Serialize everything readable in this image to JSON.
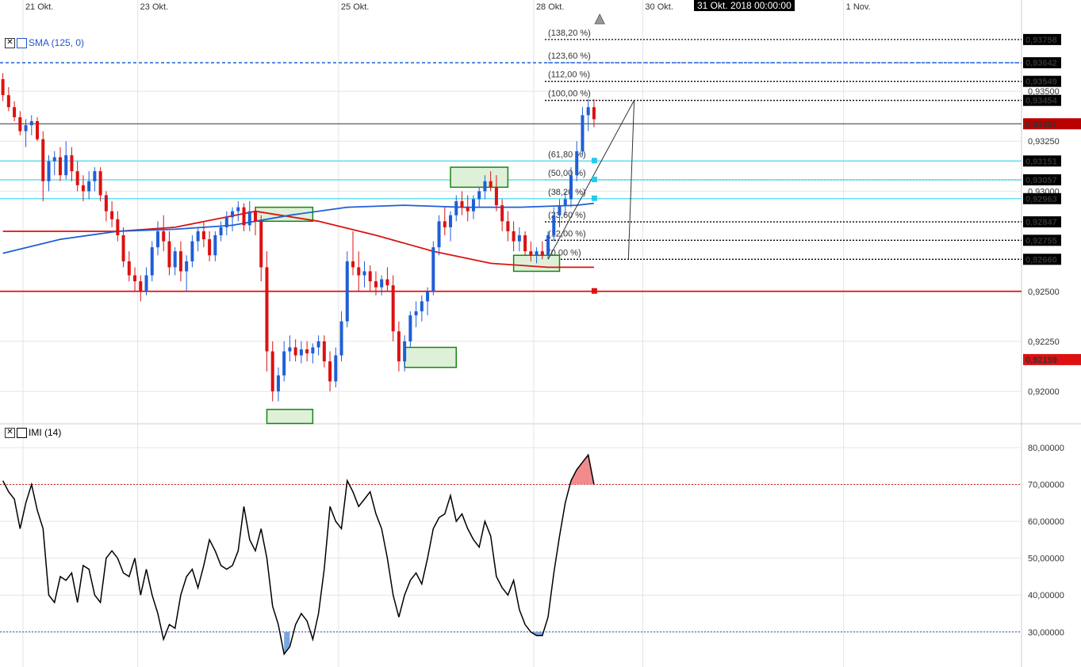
{
  "x_axis": {
    "labels": [
      {
        "label": "21 Okt.",
        "t": 4
      },
      {
        "label": "23 Okt.",
        "t": 24
      },
      {
        "label": "25 Okt.",
        "t": 59
      },
      {
        "label": "28 Okt.",
        "t": 93
      },
      {
        "label": "30 Okt.",
        "t": 112
      },
      {
        "label": "1 Nov.",
        "t": 147
      }
    ],
    "cursor_label": "31 Okt. 2018 00:00:00",
    "t_range": [
      0,
      178
    ]
  },
  "price_axis": {
    "range": [
      0.9185,
      0.939
    ],
    "ticks": [
      {
        "v": 0.935,
        "label": "0,93500"
      },
      {
        "v": 0.9325,
        "label": "0,93250"
      },
      {
        "v": 0.93,
        "label": "0,93000"
      },
      {
        "v": 0.925,
        "label": "0,92500"
      },
      {
        "v": 0.9225,
        "label": "0,92250"
      },
      {
        "v": 0.92,
        "label": "0,92000"
      }
    ],
    "badges": [
      {
        "v": 0.93758,
        "label": "0,93758",
        "color": "#000000"
      },
      {
        "v": 0.93642,
        "label": "0,93642",
        "color": "#000000"
      },
      {
        "v": 0.93549,
        "label": "0,93549",
        "color": "#000000"
      },
      {
        "v": 0.93454,
        "label": "0,93454",
        "color": "#000000"
      },
      {
        "v": 0.93337,
        "label": "0,93337",
        "color": "#bb0000"
      },
      {
        "v": 0.93151,
        "label": "0,93151",
        "color": "#000000"
      },
      {
        "v": 0.93057,
        "label": "0,93057",
        "color": "#000000"
      },
      {
        "v": 0.92963,
        "label": "0,92963",
        "color": "#000000"
      },
      {
        "v": 0.92847,
        "label": "0,92847",
        "color": "#000000"
      },
      {
        "v": 0.92755,
        "label": "0,92755",
        "color": "#000000"
      },
      {
        "v": 0.9266,
        "label": "0,92660",
        "color": "#000000"
      },
      {
        "v": 0.92159,
        "label": "0,92159",
        "color": "#dd1111"
      }
    ]
  },
  "indicator_axis": {
    "range": [
      22,
      86
    ],
    "ticks": [
      {
        "v": 80,
        "label": "80,00000"
      },
      {
        "v": 70,
        "label": "70,00000"
      },
      {
        "v": 60,
        "label": "60,00000"
      },
      {
        "v": 50,
        "label": "50,00000"
      },
      {
        "v": 40,
        "label": "40,00000"
      },
      {
        "v": 30,
        "label": "30,00000"
      }
    ],
    "upper": 70,
    "lower": 30
  },
  "legend": {
    "sma_label": "SMA (125, 0)",
    "imi_label": "IMI (14)",
    "close_glyph": "✕"
  },
  "chart_data": {
    "type": "candlestick",
    "instrument_note": "",
    "colors": {
      "up": "#1f5fd6",
      "down": "#dd1111",
      "sma": "#1f5fd6",
      "sma2": "#dd1111",
      "hline_red": "#dd1111",
      "fib_cyan": "#66ddee",
      "imi": "#000000",
      "imi_over": "#f28b8b",
      "imi_under": "#7aa6e0"
    },
    "candles": [
      [
        0,
        0.9356,
        0.9359,
        0.9345,
        0.9348
      ],
      [
        1,
        0.9348,
        0.9352,
        0.934,
        0.9342
      ],
      [
        2,
        0.9342,
        0.9345,
        0.9335,
        0.9337
      ],
      [
        3,
        0.9337,
        0.934,
        0.9328,
        0.933
      ],
      [
        4,
        0.933,
        0.9336,
        0.9322,
        0.9333
      ],
      [
        5,
        0.9333,
        0.9338,
        0.9328,
        0.9335
      ],
      [
        6,
        0.9335,
        0.9337,
        0.9325,
        0.9326
      ],
      [
        7,
        0.9326,
        0.933,
        0.9295,
        0.9305
      ],
      [
        8,
        0.9305,
        0.9318,
        0.93,
        0.9315
      ],
      [
        9,
        0.9315,
        0.932,
        0.9308,
        0.9317
      ],
      [
        10,
        0.9317,
        0.9322,
        0.9305,
        0.9308
      ],
      [
        11,
        0.9308,
        0.9325,
        0.9306,
        0.9318
      ],
      [
        12,
        0.9318,
        0.9322,
        0.9305,
        0.931
      ],
      [
        13,
        0.931,
        0.9315,
        0.93,
        0.9303
      ],
      [
        14,
        0.9303,
        0.9308,
        0.9295,
        0.93
      ],
      [
        15,
        0.93,
        0.931,
        0.9296,
        0.9305
      ],
      [
        16,
        0.9305,
        0.9312,
        0.93,
        0.931
      ],
      [
        17,
        0.931,
        0.9312,
        0.9295,
        0.9298
      ],
      [
        18,
        0.9298,
        0.93,
        0.9285,
        0.929
      ],
      [
        19,
        0.929,
        0.9295,
        0.9282,
        0.9286
      ],
      [
        20,
        0.9286,
        0.929,
        0.9275,
        0.9278
      ],
      [
        21,
        0.9278,
        0.9282,
        0.9262,
        0.9265
      ],
      [
        22,
        0.9265,
        0.927,
        0.9255,
        0.9258
      ],
      [
        23,
        0.9258,
        0.9262,
        0.925,
        0.9255
      ],
      [
        24,
        0.9255,
        0.9258,
        0.9245,
        0.925
      ],
      [
        25,
        0.925,
        0.9262,
        0.9248,
        0.9258
      ],
      [
        26,
        0.9258,
        0.9275,
        0.9255,
        0.9272
      ],
      [
        27,
        0.9272,
        0.9285,
        0.9268,
        0.928
      ],
      [
        28,
        0.928,
        0.9288,
        0.927,
        0.9275
      ],
      [
        29,
        0.9275,
        0.928,
        0.9258,
        0.9262
      ],
      [
        30,
        0.9262,
        0.9272,
        0.9258,
        0.927
      ],
      [
        31,
        0.927,
        0.9275,
        0.9255,
        0.926
      ],
      [
        32,
        0.926,
        0.9268,
        0.925,
        0.9265
      ],
      [
        33,
        0.9265,
        0.9278,
        0.9262,
        0.9275
      ],
      [
        34,
        0.9275,
        0.9282,
        0.927,
        0.928
      ],
      [
        35,
        0.928,
        0.9285,
        0.9272,
        0.9276
      ],
      [
        36,
        0.9276,
        0.928,
        0.9265,
        0.9268
      ],
      [
        37,
        0.9268,
        0.928,
        0.9265,
        0.9278
      ],
      [
        38,
        0.9278,
        0.9285,
        0.9275,
        0.9282
      ],
      [
        39,
        0.9282,
        0.929,
        0.9278,
        0.9287
      ],
      [
        40,
        0.9287,
        0.9292,
        0.928,
        0.929
      ],
      [
        41,
        0.929,
        0.9295,
        0.9285,
        0.9292
      ],
      [
        42,
        0.9292,
        0.9294,
        0.928,
        0.9283
      ],
      [
        43,
        0.9283,
        0.9295,
        0.928,
        0.929
      ],
      [
        44,
        0.929,
        0.9292,
        0.9278,
        0.9285
      ],
      [
        45,
        0.9285,
        0.9288,
        0.9255,
        0.9262
      ],
      [
        46,
        0.9262,
        0.927,
        0.921,
        0.922
      ],
      [
        47,
        0.922,
        0.9225,
        0.9195,
        0.92
      ],
      [
        48,
        0.92,
        0.9212,
        0.9195,
        0.9208
      ],
      [
        49,
        0.9208,
        0.9225,
        0.9205,
        0.922
      ],
      [
        50,
        0.922,
        0.9228,
        0.9215,
        0.9222
      ],
      [
        51,
        0.9222,
        0.9226,
        0.9215,
        0.9218
      ],
      [
        52,
        0.9218,
        0.9225,
        0.9214,
        0.9221
      ],
      [
        53,
        0.9221,
        0.9225,
        0.9215,
        0.9219
      ],
      [
        54,
        0.9219,
        0.9224,
        0.9214,
        0.9222
      ],
      [
        55,
        0.9222,
        0.9228,
        0.9218,
        0.9225
      ],
      [
        56,
        0.9225,
        0.9228,
        0.9212,
        0.9215
      ],
      [
        57,
        0.9215,
        0.922,
        0.92,
        0.9205
      ],
      [
        58,
        0.9205,
        0.9222,
        0.9202,
        0.9218
      ],
      [
        59,
        0.9218,
        0.924,
        0.9215,
        0.9235
      ],
      [
        60,
        0.9235,
        0.927,
        0.9232,
        0.9265
      ],
      [
        61,
        0.9265,
        0.928,
        0.9258,
        0.9262
      ],
      [
        62,
        0.9262,
        0.927,
        0.925,
        0.9258
      ],
      [
        63,
        0.9258,
        0.9265,
        0.9252,
        0.926
      ],
      [
        64,
        0.926,
        0.9263,
        0.925,
        0.9255
      ],
      [
        65,
        0.9255,
        0.926,
        0.9248,
        0.9252
      ],
      [
        66,
        0.9252,
        0.9258,
        0.9248,
        0.9256
      ],
      [
        67,
        0.9256,
        0.9262,
        0.925,
        0.9253
      ],
      [
        68,
        0.9253,
        0.9258,
        0.9225,
        0.923
      ],
      [
        69,
        0.923,
        0.9235,
        0.921,
        0.9215
      ],
      [
        70,
        0.9215,
        0.9228,
        0.921,
        0.9225
      ],
      [
        71,
        0.9225,
        0.924,
        0.9222,
        0.9238
      ],
      [
        72,
        0.9238,
        0.9245,
        0.9232,
        0.924
      ],
      [
        73,
        0.924,
        0.9248,
        0.9235,
        0.9245
      ],
      [
        74,
        0.9245,
        0.9252,
        0.9238,
        0.925
      ],
      [
        75,
        0.925,
        0.9275,
        0.9248,
        0.9272
      ],
      [
        76,
        0.9272,
        0.9288,
        0.9268,
        0.9285
      ],
      [
        77,
        0.9285,
        0.9292,
        0.9278,
        0.9282
      ],
      [
        78,
        0.9282,
        0.929,
        0.9275,
        0.9288
      ],
      [
        79,
        0.9288,
        0.9298,
        0.9285,
        0.9295
      ],
      [
        80,
        0.9295,
        0.93,
        0.9288,
        0.9292
      ],
      [
        81,
        0.9292,
        0.9298,
        0.9285,
        0.929
      ],
      [
        82,
        0.929,
        0.9298,
        0.9286,
        0.9296
      ],
      [
        83,
        0.9296,
        0.9302,
        0.9292,
        0.93
      ],
      [
        84,
        0.93,
        0.9308,
        0.9296,
        0.9305
      ],
      [
        85,
        0.9305,
        0.931,
        0.93,
        0.9302
      ],
      [
        86,
        0.9302,
        0.9308,
        0.929,
        0.9293
      ],
      [
        87,
        0.9293,
        0.9296,
        0.928,
        0.9285
      ],
      [
        88,
        0.9285,
        0.929,
        0.9275,
        0.928
      ],
      [
        89,
        0.928,
        0.9285,
        0.927,
        0.9275
      ],
      [
        90,
        0.9275,
        0.9282,
        0.927,
        0.9278
      ],
      [
        91,
        0.9278,
        0.928,
        0.9268,
        0.927
      ],
      [
        92,
        0.927,
        0.9275,
        0.9265,
        0.9268
      ],
      [
        93,
        0.9268,
        0.9272,
        0.9264,
        0.927
      ],
      [
        94,
        0.927,
        0.9275,
        0.9266,
        0.9268
      ],
      [
        95,
        0.9268,
        0.928,
        0.9266,
        0.9278
      ],
      [
        96,
        0.9278,
        0.9292,
        0.9275,
        0.9288
      ],
      [
        97,
        0.9288,
        0.9296,
        0.9282,
        0.9293
      ],
      [
        98,
        0.9293,
        0.93,
        0.9288,
        0.9296
      ],
      [
        99,
        0.9296,
        0.9312,
        0.9292,
        0.9308
      ],
      [
        100,
        0.9308,
        0.9325,
        0.9305,
        0.932
      ],
      [
        101,
        0.932,
        0.9342,
        0.9318,
        0.9338
      ],
      [
        102,
        0.9338,
        0.9346,
        0.933,
        0.9342
      ],
      [
        103,
        0.9342,
        0.9346,
        0.9332,
        0.9336
      ]
    ],
    "sma": [
      [
        0,
        0.9269
      ],
      [
        10,
        0.9276
      ],
      [
        20,
        0.928
      ],
      [
        30,
        0.9281
      ],
      [
        40,
        0.9283
      ],
      [
        50,
        0.9288
      ],
      [
        60,
        0.9292
      ],
      [
        70,
        0.9293
      ],
      [
        80,
        0.9292
      ],
      [
        90,
        0.9292
      ],
      [
        100,
        0.9293
      ],
      [
        103,
        0.9294
      ]
    ],
    "sma2": [
      [
        0,
        0.928
      ],
      [
        20,
        0.928
      ],
      [
        30,
        0.9282
      ],
      [
        44,
        0.929
      ],
      [
        55,
        0.9285
      ],
      [
        65,
        0.9278
      ],
      [
        75,
        0.927
      ],
      [
        85,
        0.9264
      ],
      [
        95,
        0.9262
      ],
      [
        103,
        0.9262
      ]
    ],
    "fib_levels": [
      {
        "pct": "(138,20 %)",
        "v": 0.93758,
        "color": "#000000"
      },
      {
        "pct": "(123,60 %)",
        "v": 0.93642,
        "color": "#1f5fd6"
      },
      {
        "pct": "(112,00 %)",
        "v": 0.93549,
        "color": "#000000"
      },
      {
        "pct": "(100,00 %)",
        "v": 0.93454,
        "color": "#000000"
      },
      {
        "pct": "(61,80 %)",
        "v": 0.93151,
        "color": "#000000"
      },
      {
        "pct": "(50,00 %)",
        "v": 0.93057,
        "color": "#000000"
      },
      {
        "pct": "(38,20 %)",
        "v": 0.92963,
        "color": "#000000"
      },
      {
        "pct": "(23,60 %)",
        "v": 0.92847,
        "color": "#000000"
      },
      {
        "pct": "(12,00 %)",
        "v": 0.92755,
        "color": "#000000"
      },
      {
        "pct": "(0,00 %)",
        "v": 0.9266,
        "color": "#000000"
      }
    ],
    "imi": [
      [
        0,
        71
      ],
      [
        1,
        68
      ],
      [
        2,
        66
      ],
      [
        3,
        58
      ],
      [
        4,
        65
      ],
      [
        5,
        70
      ],
      [
        6,
        63
      ],
      [
        7,
        58
      ],
      [
        8,
        40
      ],
      [
        9,
        38
      ],
      [
        10,
        45
      ],
      [
        11,
        44
      ],
      [
        12,
        46
      ],
      [
        13,
        38
      ],
      [
        14,
        48
      ],
      [
        15,
        47
      ],
      [
        16,
        40
      ],
      [
        17,
        38
      ],
      [
        18,
        50
      ],
      [
        19,
        52
      ],
      [
        20,
        50
      ],
      [
        21,
        46
      ],
      [
        22,
        45
      ],
      [
        23,
        50
      ],
      [
        24,
        40
      ],
      [
        25,
        47
      ],
      [
        26,
        40
      ],
      [
        27,
        35
      ],
      [
        28,
        28
      ],
      [
        29,
        32
      ],
      [
        30,
        31
      ],
      [
        31,
        40
      ],
      [
        32,
        45
      ],
      [
        33,
        47
      ],
      [
        34,
        42
      ],
      [
        35,
        48
      ],
      [
        36,
        55
      ],
      [
        37,
        52
      ],
      [
        38,
        48
      ],
      [
        39,
        47
      ],
      [
        40,
        48
      ],
      [
        41,
        52
      ],
      [
        42,
        64
      ],
      [
        43,
        55
      ],
      [
        44,
        52
      ],
      [
        45,
        58
      ],
      [
        46,
        50
      ],
      [
        47,
        37
      ],
      [
        48,
        32
      ],
      [
        49,
        24
      ],
      [
        50,
        26
      ],
      [
        51,
        32
      ],
      [
        52,
        35
      ],
      [
        53,
        33
      ],
      [
        54,
        28
      ],
      [
        55,
        35
      ],
      [
        56,
        47
      ],
      [
        57,
        64
      ],
      [
        58,
        60
      ],
      [
        59,
        58
      ],
      [
        60,
        71
      ],
      [
        61,
        68
      ],
      [
        62,
        64
      ],
      [
        63,
        66
      ],
      [
        64,
        68
      ],
      [
        65,
        62
      ],
      [
        66,
        58
      ],
      [
        67,
        50
      ],
      [
        68,
        40
      ],
      [
        69,
        34
      ],
      [
        70,
        40
      ],
      [
        71,
        44
      ],
      [
        72,
        46
      ],
      [
        73,
        43
      ],
      [
        74,
        50
      ],
      [
        75,
        58
      ],
      [
        76,
        61
      ],
      [
        77,
        62
      ],
      [
        78,
        67
      ],
      [
        79,
        60
      ],
      [
        80,
        62
      ],
      [
        81,
        58
      ],
      [
        82,
        55
      ],
      [
        83,
        53
      ],
      [
        84,
        60
      ],
      [
        85,
        56
      ],
      [
        86,
        45
      ],
      [
        87,
        42
      ],
      [
        88,
        40
      ],
      [
        89,
        44
      ],
      [
        90,
        36
      ],
      [
        91,
        32
      ],
      [
        92,
        30
      ],
      [
        93,
        29
      ],
      [
        94,
        29
      ],
      [
        95,
        34
      ],
      [
        96,
        46
      ],
      [
        97,
        56
      ],
      [
        98,
        65
      ],
      [
        99,
        71
      ],
      [
        100,
        74
      ],
      [
        101,
        76
      ],
      [
        102,
        78
      ],
      [
        103,
        70
      ]
    ]
  }
}
